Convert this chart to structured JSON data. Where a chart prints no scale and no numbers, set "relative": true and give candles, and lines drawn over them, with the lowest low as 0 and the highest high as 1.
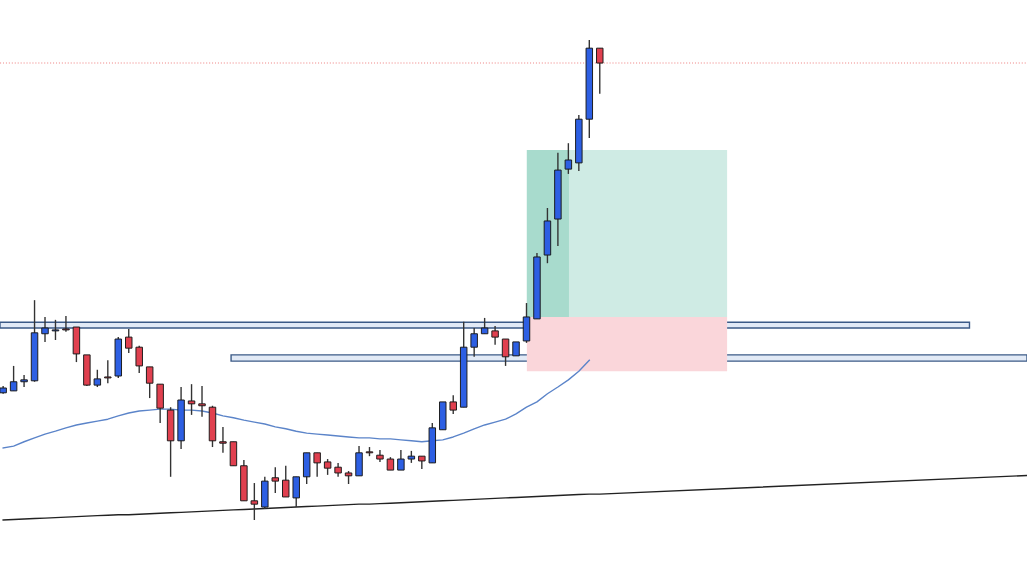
{
  "chart_data": {
    "type": "candlestick",
    "relative": true,
    "categories": [
      null,
      null,
      null,
      null,
      null,
      null,
      null,
      null,
      null,
      null,
      null,
      null,
      null,
      null,
      null,
      null,
      null,
      null,
      null,
      null,
      null,
      null,
      null,
      null,
      null,
      null,
      null,
      null,
      null,
      null,
      null,
      null,
      null,
      null,
      null,
      null,
      null,
      null,
      null,
      null,
      null,
      null,
      null,
      null,
      null,
      null,
      null,
      null,
      null,
      null,
      null,
      null,
      null,
      null,
      null,
      null,
      null,
      null
    ],
    "ohlc": [
      [
        0.265,
        0.279,
        0.263,
        0.275
      ],
      [
        0.269,
        0.321,
        0.269,
        0.288
      ],
      [
        0.288,
        0.302,
        0.277,
        0.292
      ],
      [
        0.29,
        0.458,
        0.288,
        0.39
      ],
      [
        0.388,
        0.423,
        0.371,
        0.4
      ],
      [
        0.394,
        0.417,
        0.375,
        0.396
      ],
      [
        0.398,
        0.425,
        0.392,
        0.396
      ],
      [
        0.402,
        0.402,
        0.329,
        0.346
      ],
      [
        0.344,
        0.344,
        0.279,
        0.281
      ],
      [
        0.281,
        0.313,
        0.277,
        0.294
      ],
      [
        0.298,
        0.333,
        0.285,
        0.296
      ],
      [
        0.3,
        0.381,
        0.296,
        0.377
      ],
      [
        0.381,
        0.398,
        0.348,
        0.358
      ],
      [
        0.36,
        0.363,
        0.306,
        0.321
      ],
      [
        0.319,
        0.319,
        0.254,
        0.285
      ],
      [
        0.283,
        0.283,
        0.202,
        0.233
      ],
      [
        0.229,
        0.235,
        0.09,
        0.165
      ],
      [
        0.165,
        0.277,
        0.148,
        0.25
      ],
      [
        0.248,
        0.283,
        0.219,
        0.242
      ],
      [
        0.242,
        0.279,
        0.215,
        0.238
      ],
      [
        0.235,
        0.238,
        0.152,
        0.165
      ],
      [
        0.163,
        0.194,
        0.14,
        0.16
      ],
      [
        0.163,
        0.163,
        0.113,
        0.113
      ],
      [
        0.113,
        0.125,
        0.04,
        0.04
      ],
      [
        0.04,
        0.077,
        0.0,
        0.033
      ],
      [
        0.027,
        0.09,
        0.023,
        0.081
      ],
      [
        0.088,
        0.11,
        0.056,
        0.081
      ],
      [
        0.083,
        0.113,
        0.048,
        0.048
      ],
      [
        0.046,
        0.09,
        0.027,
        0.09
      ],
      [
        0.09,
        0.14,
        0.075,
        0.14
      ],
      [
        0.14,
        0.14,
        0.09,
        0.119
      ],
      [
        0.121,
        0.127,
        0.094,
        0.108
      ],
      [
        0.11,
        0.119,
        0.09,
        0.098
      ],
      [
        0.098,
        0.102,
        0.075,
        0.092
      ],
      [
        0.092,
        0.154,
        0.092,
        0.14
      ],
      [
        0.142,
        0.152,
        0.133,
        0.14
      ],
      [
        0.135,
        0.146,
        0.121,
        0.127
      ],
      [
        0.127,
        0.131,
        0.104,
        0.104
      ],
      [
        0.104,
        0.146,
        0.104,
        0.127
      ],
      [
        0.127,
        0.144,
        0.119,
        0.133
      ],
      [
        0.133,
        0.133,
        0.106,
        0.123
      ],
      [
        0.119,
        0.202,
        0.119,
        0.192
      ],
      [
        0.188,
        0.246,
        0.188,
        0.246
      ],
      [
        0.246,
        0.26,
        0.221,
        0.229
      ],
      [
        0.235,
        0.413,
        0.235,
        0.36
      ],
      [
        0.36,
        0.4,
        0.34,
        0.388
      ],
      [
        0.388,
        0.421,
        0.388,
        0.4
      ],
      [
        0.394,
        0.404,
        0.365,
        0.381
      ],
      [
        0.377,
        0.377,
        0.321,
        0.34
      ],
      [
        0.342,
        0.371,
        0.342,
        0.371
      ],
      [
        0.373,
        0.452,
        0.369,
        0.423
      ],
      [
        0.419,
        0.556,
        0.419,
        0.548
      ],
      [
        0.552,
        0.65,
        0.535,
        0.623
      ],
      [
        0.627,
        0.765,
        0.571,
        0.729
      ],
      [
        0.731,
        0.785,
        0.721,
        0.75
      ],
      [
        0.744,
        0.844,
        0.727,
        0.835
      ],
      [
        0.835,
        1.0,
        0.796,
        0.983
      ],
      [
        0.983,
        0.983,
        0.888,
        0.952
      ]
    ],
    "colors": [
      "#2d5fe3",
      "#2d5fe3",
      "#2d5fe3",
      "#2d5fe3",
      "#2d5fe3",
      "#2d5fe3",
      "#e0404f",
      "#e0404f",
      "#e0404f",
      "#2d5fe3",
      "#e0404f",
      "#2d5fe3",
      "#e0404f",
      "#e0404f",
      "#e0404f",
      "#e0404f",
      "#e0404f",
      "#2d5fe3",
      "#e0404f",
      "#e0404f",
      "#e0404f",
      "#e0404f",
      "#e0404f",
      "#e0404f",
      "#e0404f",
      "#2d5fe3",
      "#e0404f",
      "#e0404f",
      "#2d5fe3",
      "#2d5fe3",
      "#e0404f",
      "#e0404f",
      "#e0404f",
      "#e0404f",
      "#2d5fe3",
      "#e0404f",
      "#e0404f",
      "#e0404f",
      "#2d5fe3",
      "#2d5fe3",
      "#e0404f",
      "#2d5fe3",
      "#2d5fe3",
      "#e0404f",
      "#2d5fe3",
      "#2d5fe3",
      "#2d5fe3",
      "#e0404f",
      "#e0404f",
      "#2d5fe3",
      "#2d5fe3",
      "#2d5fe3",
      "#2d5fe3",
      "#2d5fe3",
      "#2d5fe3",
      "#2d5fe3",
      "#2d5fe3",
      "#e0404f"
    ],
    "series": [
      {
        "type": "line",
        "color": "#5b84c9",
        "values": [
          0.15,
          0.154,
          0.163,
          0.171,
          0.179,
          0.185,
          0.192,
          0.198,
          0.202,
          0.206,
          0.21,
          0.217,
          0.223,
          0.227,
          0.229,
          0.231,
          0.231,
          0.229,
          0.229,
          0.227,
          0.223,
          0.217,
          0.213,
          0.208,
          0.204,
          0.2,
          0.194,
          0.19,
          0.185,
          0.181,
          0.179,
          0.177,
          0.175,
          0.173,
          0.171,
          0.171,
          0.169,
          0.169,
          0.167,
          0.165,
          0.163,
          0.165,
          0.167,
          0.173,
          0.181,
          0.19,
          0.198,
          0.204,
          0.21,
          0.221,
          0.235,
          0.246,
          0.263,
          0.277,
          0.292,
          0.31,
          0.333,
          null
        ]
      },
      {
        "type": "line",
        "color": "#222222",
        "values": [
          0.0,
          0.001,
          0.002,
          0.003,
          0.004,
          0.005,
          0.006,
          0.007,
          0.008,
          0.009,
          0.01,
          0.011,
          0.011,
          0.012,
          0.013,
          0.014,
          0.015,
          0.016,
          0.017,
          0.018,
          0.019,
          0.02,
          0.021,
          0.022,
          0.023,
          0.024,
          0.025,
          0.026,
          0.027,
          0.028,
          0.029,
          0.03,
          0.031,
          0.032,
          0.033,
          0.033,
          0.034,
          0.035,
          0.036,
          0.037,
          0.038,
          0.039,
          0.04,
          0.041,
          0.042,
          0.043,
          0.044,
          0.045,
          0.046,
          0.047,
          0.048,
          0.049,
          0.05,
          0.051,
          0.052,
          0.053,
          0.054,
          0.054
        ]
      }
    ],
    "bands": [
      {
        "axis": "y",
        "from": 0.4,
        "to": 0.412,
        "color": "#e2eaf6"
      },
      {
        "axis": "y",
        "from": 0.331,
        "to": 0.344,
        "color": "#e2eaf6"
      },
      {
        "axis": "y",
        "from": 0.423,
        "to": 0.771,
        "color": "#cfebe4"
      },
      {
        "axis": "y",
        "from": 0.423,
        "to": 0.771,
        "color": "#a8dbcd"
      },
      {
        "axis": "y",
        "from": 0.31,
        "to": 0.423,
        "color": "#fad6da"
      }
    ],
    "ref_lines": [
      {
        "axis": "y",
        "value": 0.952,
        "color": "#f08a8a",
        "line_style": "dotted"
      }
    ]
  }
}
